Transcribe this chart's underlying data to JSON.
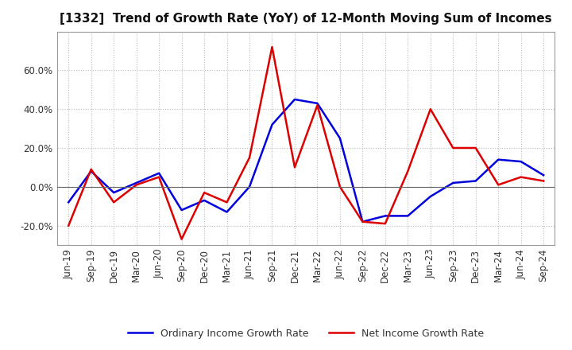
{
  "title": "[1332]  Trend of Growth Rate (YoY) of 12-Month Moving Sum of Incomes",
  "x_labels": [
    "Jun-19",
    "Sep-19",
    "Dec-19",
    "Mar-20",
    "Jun-20",
    "Sep-20",
    "Dec-20",
    "Mar-21",
    "Jun-21",
    "Sep-21",
    "Dec-21",
    "Mar-22",
    "Jun-22",
    "Sep-22",
    "Dec-22",
    "Mar-23",
    "Jun-23",
    "Sep-23",
    "Dec-23",
    "Mar-24",
    "Jun-24",
    "Sep-24"
  ],
  "ordinary_income": [
    -8,
    8,
    -3,
    2,
    7,
    -12,
    -7,
    -13,
    0,
    32,
    45,
    43,
    25,
    -18,
    -15,
    -15,
    -5,
    2,
    3,
    14,
    13,
    6
  ],
  "net_income": [
    -20,
    9,
    -8,
    1,
    5,
    -27,
    -3,
    -8,
    15,
    72,
    10,
    42,
    0,
    -18,
    -19,
    8,
    40,
    20,
    20,
    1,
    5,
    3
  ],
  "ylim": [
    -30,
    80
  ],
  "yticks": [
    -20,
    0,
    20,
    40,
    60
  ],
  "ordinary_color": "#0000dd",
  "net_color": "#dd0000",
  "background_color": "#ffffff",
  "grid_color": "#bbbbbb",
  "legend_ordinary": "Ordinary Income Growth Rate",
  "legend_net": "Net Income Growth Rate",
  "title_fontsize": 11,
  "tick_fontsize": 8.5,
  "legend_fontsize": 9
}
